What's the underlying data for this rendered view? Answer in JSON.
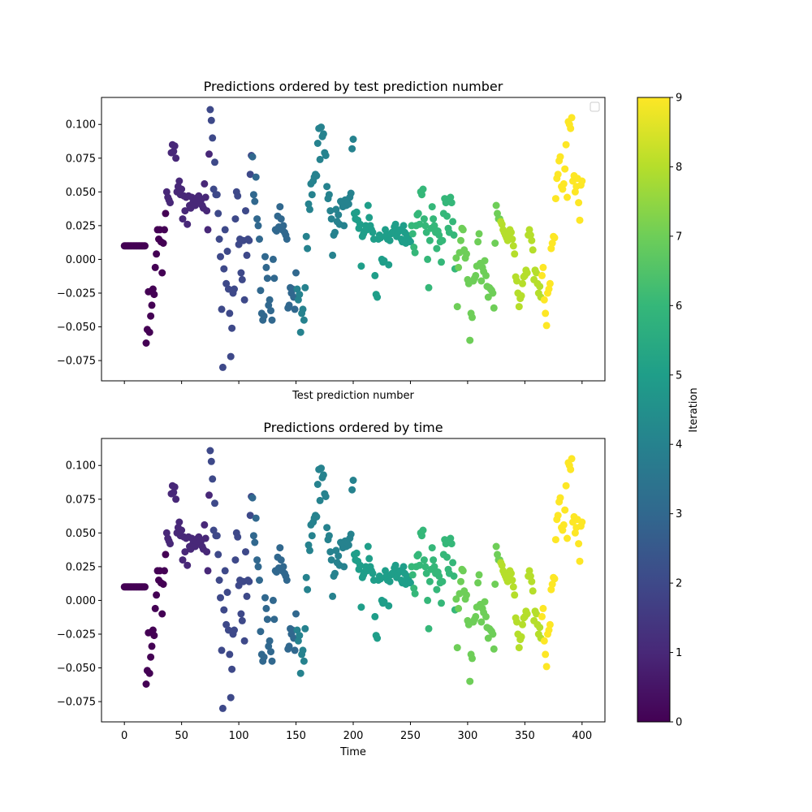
{
  "chart_data": [
    {
      "type": "scatter",
      "title": "Predictions ordered by test prediction number",
      "xlabel": "Test prediction number",
      "ylabel": "",
      "xlim": [
        -20,
        420
      ],
      "ylim": [
        -0.09,
        0.12
      ],
      "xticks": [
        0,
        50,
        100,
        150,
        200,
        250,
        300,
        350,
        400
      ],
      "show_xtick_labels": false,
      "yticks": [
        -0.075,
        -0.05,
        -0.025,
        0.0,
        0.025,
        0.05,
        0.075,
        0.1
      ],
      "ytick_labels": [
        "−0.075",
        "−0.050",
        "−0.025",
        "0.000",
        "0.025",
        "0.050",
        "0.075",
        "0.100"
      ],
      "legend": "top-right (empty)",
      "grid": false,
      "color_by": "iteration",
      "iterations": [
        {
          "iteration": 0,
          "x": [
            0,
            1,
            2,
            3,
            4,
            5,
            6,
            7,
            8,
            9,
            10,
            11,
            12,
            13,
            14,
            15,
            16,
            17,
            18,
            19,
            20,
            21,
            22,
            23,
            24,
            25,
            26,
            27,
            28,
            29,
            30,
            31,
            32,
            33,
            34,
            35,
            36
          ],
          "y": [
            0.01,
            0.01,
            0.01,
            0.01,
            0.01,
            0.01,
            0.01,
            0.01,
            0.01,
            0.01,
            0.01,
            0.01,
            0.01,
            0.01,
            0.01,
            0.01,
            0.01,
            0.01,
            0.01,
            -0.062,
            -0.052,
            -0.024,
            -0.054,
            -0.042,
            -0.034,
            -0.022,
            -0.026,
            -0.006,
            0.004,
            0.022,
            0.015,
            0.022,
            0.013,
            -0.01,
            0.012,
            0.022,
            0.034
          ]
        },
        {
          "iteration": 1,
          "x": [
            37,
            38,
            39,
            40,
            41,
            42,
            43,
            44,
            45,
            46,
            47,
            48,
            49,
            50,
            51,
            52,
            53,
            54,
            55,
            56,
            57,
            58,
            59,
            60,
            61,
            62,
            63,
            64,
            65,
            66,
            67,
            68,
            69,
            70,
            71,
            72,
            73,
            74
          ],
          "y": [
            0.05,
            0.046,
            0.044,
            0.042,
            0.079,
            0.085,
            0.08,
            0.084,
            0.075,
            0.05,
            0.054,
            0.058,
            0.048,
            0.052,
            0.03,
            0.047,
            0.036,
            0.046,
            0.026,
            0.047,
            0.04,
            0.038,
            0.046,
            0.042,
            0.04,
            0.04,
            0.044,
            0.046,
            0.047,
            0.043,
            0.044,
            0.04,
            0.038,
            0.056,
            0.046,
            0.036,
            0.022,
            0.078
          ]
        },
        {
          "iteration": 2,
          "x": [
            75,
            76,
            77,
            78,
            79,
            80,
            81,
            82,
            83,
            84,
            85,
            86,
            87,
            88,
            89,
            90,
            91,
            92,
            93,
            94,
            95,
            96,
            97,
            98,
            99,
            100,
            101,
            102,
            103,
            104,
            105,
            106,
            107,
            108,
            109,
            110,
            111
          ],
          "y": [
            0.111,
            0.103,
            0.09,
            0.052,
            0.072,
            0.048,
            0.048,
            0.034,
            0.015,
            0.002,
            -0.037,
            -0.08,
            -0.007,
            0.022,
            -0.018,
            0.006,
            -0.022,
            -0.04,
            -0.072,
            -0.051,
            -0.025,
            -0.022,
            0.03,
            0.05,
            0.047,
            0.011,
            0.015,
            -0.01,
            -0.015,
            0.014,
            -0.03,
            0.036,
            0.003,
            0.015,
            0.014,
            0.063,
            0.077
          ]
        },
        {
          "iteration": 3,
          "x": [
            112,
            113,
            114,
            115,
            116,
            117,
            118,
            119,
            120,
            121,
            122,
            123,
            124,
            125,
            126,
            127,
            128,
            129,
            130,
            131,
            132,
            133,
            134,
            135,
            136,
            137,
            138,
            139,
            140,
            141,
            142,
            143,
            144,
            145,
            146,
            147,
            148,
            149,
            150
          ],
          "y": [
            0.076,
            0.048,
            0.043,
            0.061,
            0.03,
            0.025,
            0.015,
            -0.023,
            -0.04,
            -0.045,
            -0.042,
            0.002,
            -0.006,
            -0.014,
            -0.034,
            -0.03,
            -0.038,
            -0.045,
            0.0,
            -0.014,
            0.022,
            0.021,
            0.032,
            0.024,
            0.039,
            0.03,
            0.022,
            0.025,
            0.02,
            0.018,
            0.015,
            -0.036,
            -0.034,
            -0.021,
            -0.025,
            -0.022,
            -0.028,
            -0.037,
            -0.01
          ]
        },
        {
          "iteration": 4,
          "x": [
            151,
            152,
            153,
            154,
            155,
            156,
            157,
            158,
            159,
            160,
            161,
            162,
            163,
            164,
            165,
            166,
            167,
            168,
            169,
            170,
            171,
            172,
            173,
            174,
            175,
            176,
            177,
            178,
            179,
            180,
            181,
            182,
            183,
            184,
            185,
            186,
            187,
            188,
            189,
            190,
            191,
            192,
            193,
            194,
            195,
            196,
            197,
            198,
            199,
            200
          ],
          "y": [
            -0.022,
            -0.03,
            -0.026,
            -0.054,
            -0.04,
            -0.037,
            -0.045,
            -0.021,
            0.017,
            0.008,
            0.041,
            0.037,
            0.056,
            0.048,
            0.058,
            0.061,
            0.063,
            0.062,
            0.086,
            0.097,
            0.074,
            0.098,
            0.091,
            0.093,
            0.079,
            0.077,
            0.054,
            0.045,
            0.048,
            0.036,
            0.03,
            0.003,
            0.018,
            0.02,
            0.037,
            0.028,
            0.033,
            0.026,
            0.043,
            0.042,
            0.039,
            0.025,
            0.044,
            0.04,
            0.042,
            0.041,
            0.046,
            0.049,
            0.082,
            0.089
          ]
        },
        {
          "iteration": 5,
          "x": [
            201,
            202,
            203,
            204,
            205,
            206,
            207,
            208,
            209,
            210,
            211,
            212,
            213,
            214,
            215,
            216,
            217,
            218,
            219,
            220,
            221,
            222,
            223,
            224,
            225,
            226,
            227,
            228,
            229,
            230,
            231,
            232,
            233,
            234,
            235,
            236,
            237,
            238,
            239,
            240,
            241,
            242,
            243,
            244,
            245,
            246,
            247,
            248,
            249,
            250
          ],
          "y": [
            0.034,
            0.03,
            0.035,
            0.029,
            0.023,
            0.026,
            -0.005,
            0.017,
            0.019,
            0.021,
            0.025,
            0.022,
            0.04,
            0.031,
            0.025,
            0.022,
            0.02,
            0.015,
            -0.012,
            -0.026,
            -0.028,
            0.015,
            0.018,
            0.016,
            0.0,
            -0.002,
            -0.001,
            0.022,
            0.018,
            0.015,
            -0.004,
            0.014,
            0.019,
            0.02,
            0.02,
            0.024,
            0.026,
            0.017,
            0.02,
            0.021,
            0.022,
            0.015,
            0.013,
            0.025,
            0.02,
            0.012,
            0.018,
            0.016,
            0.014,
            0.013
          ]
        },
        {
          "iteration": 6,
          "x": [
            251,
            252,
            253,
            254,
            255,
            256,
            257,
            258,
            259,
            260,
            261,
            262,
            263,
            264,
            265,
            266,
            267,
            268,
            269,
            270,
            271,
            272,
            273,
            274,
            275,
            276,
            277,
            278,
            279,
            280,
            281,
            282,
            283,
            284,
            285,
            286,
            287,
            288,
            289
          ],
          "y": [
            0.025,
            0.019,
            0.009,
            0.005,
            0.025,
            0.033,
            0.034,
            0.026,
            0.05,
            0.048,
            0.052,
            0.03,
            0.025,
            0.02,
            0.0,
            -0.021,
            0.014,
            0.023,
            0.039,
            0.03,
            0.025,
            0.02,
            0.008,
            0.021,
            0.018,
            0.013,
            -0.002,
            0.014,
            0.034,
            0.045,
            0.042,
            0.032,
            0.023,
            0.02,
            0.046,
            0.042,
            0.028,
            0.018,
            -0.007
          ]
        },
        {
          "iteration": 7,
          "x": [
            290,
            291,
            292,
            293,
            294,
            295,
            296,
            297,
            298,
            299,
            300,
            301,
            302,
            303,
            304,
            305,
            306,
            307,
            308,
            309,
            310,
            311,
            312,
            313,
            314,
            315,
            316,
            317,
            318,
            319,
            320,
            321,
            322,
            323,
            324,
            325,
            326,
            327,
            328
          ],
          "y": [
            0.001,
            -0.035,
            -0.006,
            0.005,
            0.014,
            0.023,
            0.022,
            0.007,
            0.001,
            0.004,
            -0.015,
            -0.018,
            -0.06,
            -0.04,
            -0.043,
            -0.016,
            -0.014,
            -0.012,
            -0.005,
            0.013,
            0.019,
            -0.003,
            -0.016,
            -0.006,
            -0.009,
            -0.001,
            -0.012,
            -0.02,
            -0.028,
            -0.021,
            -0.022,
            -0.023,
            -0.025,
            -0.036,
            0.012,
            0.04,
            0.034,
            0.03,
            0.03
          ]
        },
        {
          "iteration": 8,
          "x": [
            329,
            330,
            331,
            332,
            333,
            334,
            335,
            336,
            337,
            338,
            339,
            340,
            341,
            342,
            343,
            344,
            345,
            346,
            347,
            348,
            349,
            350,
            351,
            352,
            353,
            354,
            355,
            356,
            357,
            358,
            359,
            360,
            361,
            362,
            363,
            364
          ],
          "y": [
            0.028,
            0.026,
            0.022,
            0.02,
            0.018,
            0.016,
            0.014,
            0.018,
            0.022,
            0.02,
            0.015,
            0.01,
            0.004,
            -0.013,
            -0.016,
            -0.025,
            -0.035,
            -0.029,
            -0.027,
            -0.018,
            -0.013,
            -0.012,
            -0.008,
            -0.01,
            0.018,
            0.022,
            0.018,
            0.014,
            0.007,
            -0.015,
            -0.008,
            -0.01,
            -0.018,
            -0.025,
            -0.02,
            -0.028
          ]
        },
        {
          "iteration": 9,
          "x": [
            365,
            366,
            367,
            368,
            369,
            370,
            371,
            372,
            373,
            374,
            375,
            376,
            377,
            378,
            379,
            380,
            381,
            382,
            383,
            384,
            385,
            386,
            387,
            388,
            389,
            390,
            391,
            392,
            393,
            394,
            395,
            396,
            397,
            398,
            399,
            400
          ],
          "y": [
            -0.012,
            -0.006,
            -0.03,
            -0.04,
            -0.049,
            -0.025,
            -0.022,
            -0.018,
            0.008,
            0.012,
            0.017,
            0.016,
            0.045,
            0.06,
            0.063,
            0.073,
            0.076,
            0.054,
            0.052,
            0.056,
            0.067,
            0.085,
            0.046,
            0.102,
            0.1,
            0.097,
            0.105,
            0.058,
            0.062,
            0.05,
            0.054,
            0.06,
            0.042,
            0.029,
            0.055,
            0.058
          ]
        }
      ]
    },
    {
      "type": "scatter",
      "title": "Predictions ordered by time",
      "xlabel": "Time",
      "ylabel": "",
      "xlim": [
        -20,
        420
      ],
      "ylim": [
        -0.09,
        0.12
      ],
      "xticks": [
        0,
        50,
        100,
        150,
        200,
        250,
        300,
        350,
        400
      ],
      "xtick_labels": [
        "0",
        "50",
        "100",
        "150",
        "200",
        "250",
        "300",
        "350",
        "400"
      ],
      "show_xtick_labels": true,
      "yticks": [
        -0.075,
        -0.05,
        -0.025,
        0.0,
        0.025,
        0.05,
        0.075,
        0.1
      ],
      "ytick_labels": [
        "−0.075",
        "−0.050",
        "−0.025",
        "0.000",
        "0.025",
        "0.050",
        "0.075",
        "0.100"
      ],
      "grid": false,
      "color_by": "iteration",
      "same_points_as": "Predictions ordered by test prediction number"
    }
  ],
  "colorbar": {
    "label": "Iteration",
    "colormap": "viridis",
    "range": [
      0,
      9
    ],
    "ticks": [
      "0",
      "1",
      "2",
      "3",
      "4",
      "5",
      "6",
      "7",
      "8",
      "9"
    ],
    "colors": [
      "#440154",
      "#482878",
      "#3e4989",
      "#31688e",
      "#26828e",
      "#1f9e89",
      "#35b779",
      "#6ece58",
      "#b5de2b",
      "#fde725"
    ]
  }
}
